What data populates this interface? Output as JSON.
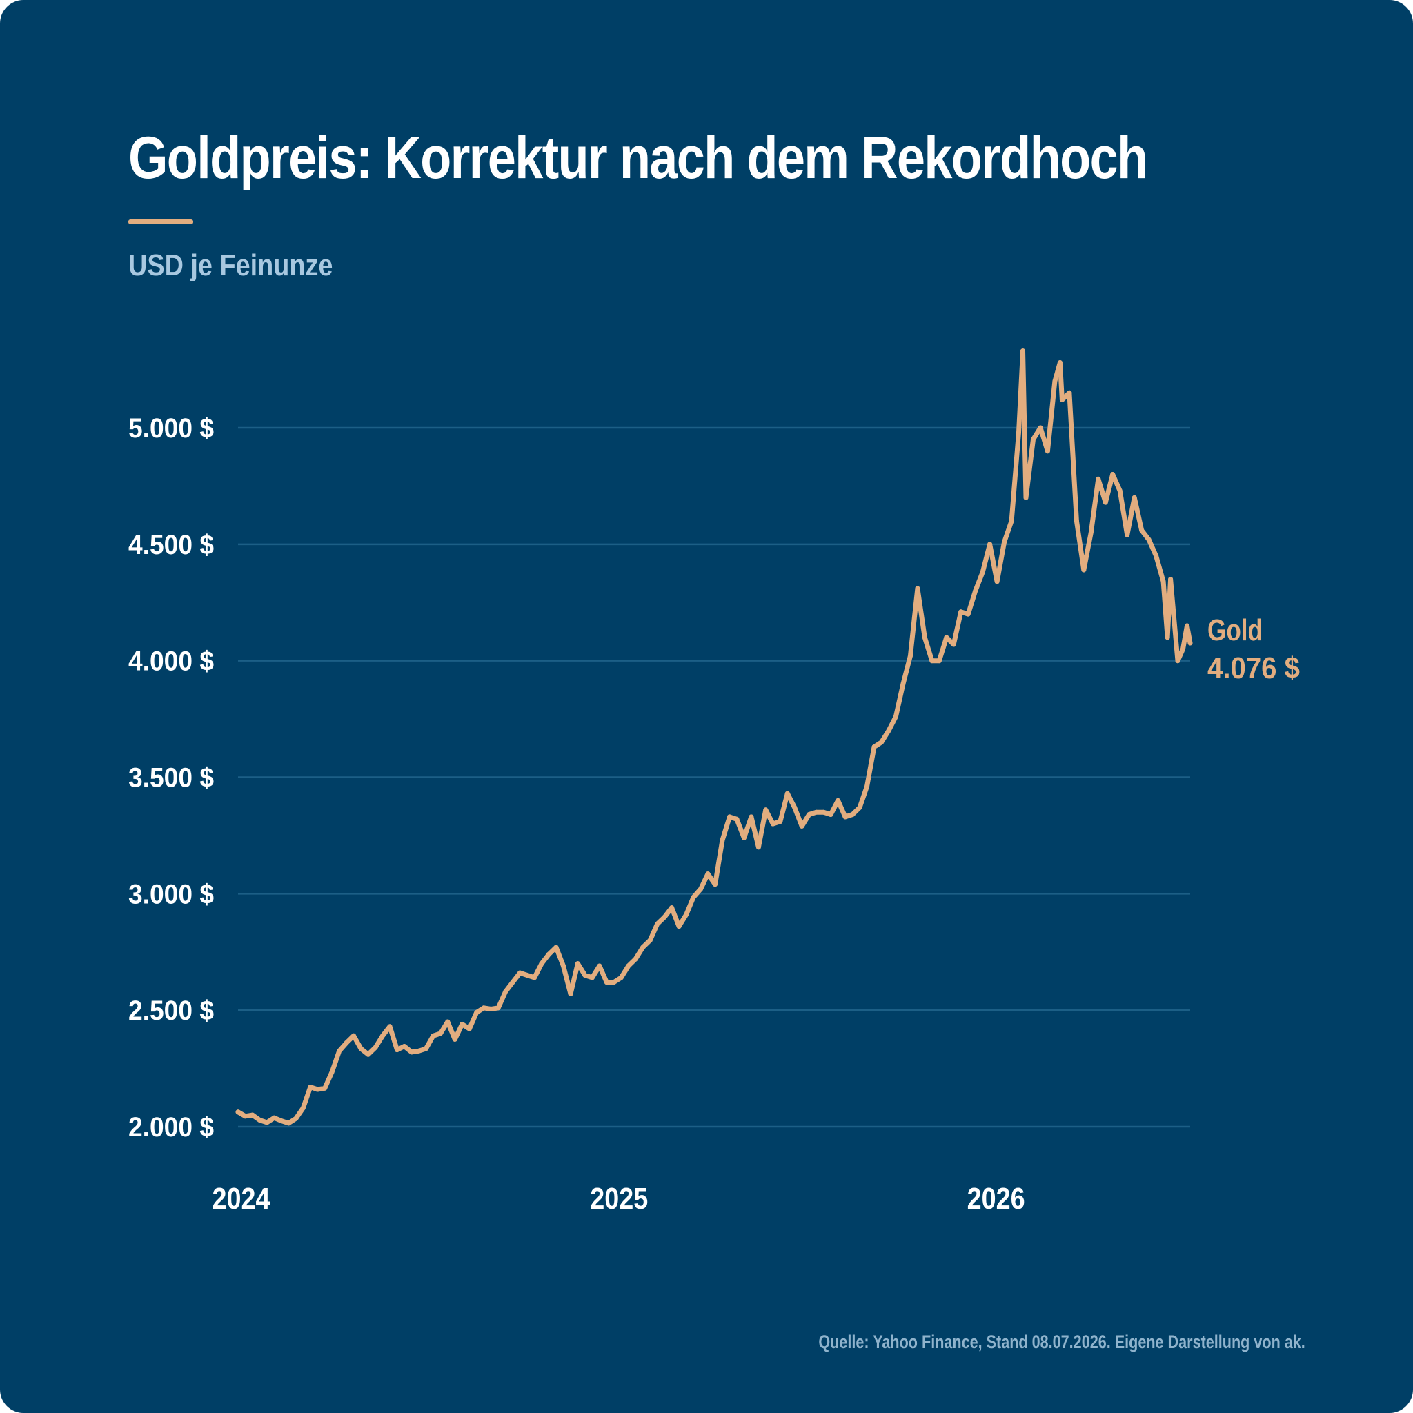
{
  "title": "Goldpreis: Korrektur nach dem Rekordhoch",
  "subtitle": "USD je Feinunze",
  "source": "Quelle: Yahoo Finance, Stand 08.07.2026. Eigene Darstellung von ak.",
  "colors": {
    "background": "#003f66",
    "line": "#e2ad7f",
    "grid": "#1c5f86",
    "text": "#ffffff",
    "muted": "#a8c8e0"
  },
  "chart_data": {
    "type": "line",
    "title": "Goldpreis: Korrektur nach dem Rekordhoch",
    "ylabel": "USD je Feinunze",
    "xlabel": "",
    "ylim": [
      2000,
      5000
    ],
    "yticks": [
      {
        "value": 2000,
        "label": "2.000 $"
      },
      {
        "value": 2500,
        "label": "2.500 $"
      },
      {
        "value": 3000,
        "label": "3.000 $"
      },
      {
        "value": 3500,
        "label": "3.500 $"
      },
      {
        "value": 4000,
        "label": "4.000 $"
      },
      {
        "value": 4500,
        "label": "4.500 $"
      },
      {
        "value": 5000,
        "label": "5.000 $"
      }
    ],
    "xticks": [
      {
        "date": "2024-01-01",
        "label": "2024"
      },
      {
        "date": "2025-01-01",
        "label": "2025"
      },
      {
        "date": "2026-01-01",
        "label": "2026"
      }
    ],
    "grid": true,
    "series": [
      {
        "name": "Gold",
        "end_label": "4.076 $",
        "points": [
          [
            "2023-12-29",
            2063
          ],
          [
            "2024-01-05",
            2045
          ],
          [
            "2024-01-12",
            2050
          ],
          [
            "2024-01-19",
            2028
          ],
          [
            "2024-01-26",
            2018
          ],
          [
            "2024-02-02",
            2038
          ],
          [
            "2024-02-09",
            2025
          ],
          [
            "2024-02-16",
            2015
          ],
          [
            "2024-02-23",
            2035
          ],
          [
            "2024-03-01",
            2080
          ],
          [
            "2024-03-08",
            2170
          ],
          [
            "2024-03-15",
            2160
          ],
          [
            "2024-03-22",
            2165
          ],
          [
            "2024-03-29",
            2235
          ],
          [
            "2024-04-05",
            2325
          ],
          [
            "2024-04-12",
            2360
          ],
          [
            "2024-04-19",
            2390
          ],
          [
            "2024-04-26",
            2335
          ],
          [
            "2024-05-03",
            2310
          ],
          [
            "2024-05-10",
            2340
          ],
          [
            "2024-05-17",
            2390
          ],
          [
            "2024-05-24",
            2430
          ],
          [
            "2024-05-31",
            2330
          ],
          [
            "2024-06-07",
            2345
          ],
          [
            "2024-06-14",
            2320
          ],
          [
            "2024-06-21",
            2325
          ],
          [
            "2024-06-28",
            2335
          ],
          [
            "2024-07-05",
            2390
          ],
          [
            "2024-07-12",
            2400
          ],
          [
            "2024-07-19",
            2450
          ],
          [
            "2024-07-26",
            2375
          ],
          [
            "2024-08-02",
            2440
          ],
          [
            "2024-08-09",
            2420
          ],
          [
            "2024-08-16",
            2490
          ],
          [
            "2024-08-23",
            2510
          ],
          [
            "2024-08-30",
            2505
          ],
          [
            "2024-09-06",
            2510
          ],
          [
            "2024-09-13",
            2580
          ],
          [
            "2024-09-20",
            2620
          ],
          [
            "2024-09-27",
            2660
          ],
          [
            "2024-10-04",
            2650
          ],
          [
            "2024-10-11",
            2640
          ],
          [
            "2024-10-18",
            2700
          ],
          [
            "2024-10-25",
            2740
          ],
          [
            "2024-11-01",
            2770
          ],
          [
            "2024-11-08",
            2690
          ],
          [
            "2024-11-15",
            2570
          ],
          [
            "2024-11-22",
            2700
          ],
          [
            "2024-11-29",
            2650
          ],
          [
            "2024-12-06",
            2640
          ],
          [
            "2024-12-13",
            2690
          ],
          [
            "2024-12-20",
            2620
          ],
          [
            "2024-12-27",
            2620
          ],
          [
            "2025-01-03",
            2640
          ],
          [
            "2025-01-10",
            2690
          ],
          [
            "2025-01-17",
            2720
          ],
          [
            "2025-01-24",
            2770
          ],
          [
            "2025-01-31",
            2800
          ],
          [
            "2025-02-07",
            2870
          ],
          [
            "2025-02-14",
            2900
          ],
          [
            "2025-02-21",
            2940
          ],
          [
            "2025-02-28",
            2860
          ],
          [
            "2025-03-07",
            2910
          ],
          [
            "2025-03-14",
            2985
          ],
          [
            "2025-03-21",
            3020
          ],
          [
            "2025-03-28",
            3085
          ],
          [
            "2025-04-04",
            3040
          ],
          [
            "2025-04-11",
            3230
          ],
          [
            "2025-04-18",
            3330
          ],
          [
            "2025-04-25",
            3320
          ],
          [
            "2025-05-02",
            3240
          ],
          [
            "2025-05-09",
            3330
          ],
          [
            "2025-05-16",
            3200
          ],
          [
            "2025-05-23",
            3360
          ],
          [
            "2025-05-30",
            3300
          ],
          [
            "2025-06-06",
            3310
          ],
          [
            "2025-06-13",
            3430
          ],
          [
            "2025-06-20",
            3370
          ],
          [
            "2025-06-27",
            3290
          ],
          [
            "2025-07-04",
            3340
          ],
          [
            "2025-07-11",
            3350
          ],
          [
            "2025-07-18",
            3350
          ],
          [
            "2025-07-25",
            3340
          ],
          [
            "2025-08-01",
            3400
          ],
          [
            "2025-08-08",
            3330
          ],
          [
            "2025-08-15",
            3340
          ],
          [
            "2025-08-22",
            3370
          ],
          [
            "2025-08-29",
            3460
          ],
          [
            "2025-09-05",
            3630
          ],
          [
            "2025-09-12",
            3650
          ],
          [
            "2025-09-19",
            3700
          ],
          [
            "2025-09-26",
            3760
          ],
          [
            "2025-10-03",
            3900
          ],
          [
            "2025-10-10",
            4020
          ],
          [
            "2025-10-17",
            4310
          ],
          [
            "2025-10-24",
            4100
          ],
          [
            "2025-10-31",
            4000
          ],
          [
            "2025-11-07",
            4000
          ],
          [
            "2025-11-14",
            4100
          ],
          [
            "2025-11-21",
            4070
          ],
          [
            "2025-11-28",
            4210
          ],
          [
            "2025-12-05",
            4200
          ],
          [
            "2025-12-12",
            4300
          ],
          [
            "2025-12-19",
            4380
          ],
          [
            "2025-12-26",
            4500
          ],
          [
            "2026-01-02",
            4340
          ],
          [
            "2026-01-09",
            4510
          ],
          [
            "2026-01-16",
            4600
          ],
          [
            "2026-01-23",
            4980
          ],
          [
            "2026-01-27",
            5330
          ],
          [
            "2026-01-30",
            4700
          ],
          [
            "2026-02-06",
            4950
          ],
          [
            "2026-02-13",
            5000
          ],
          [
            "2026-02-20",
            4900
          ],
          [
            "2026-02-27",
            5200
          ],
          [
            "2026-03-04",
            5280
          ],
          [
            "2026-03-06",
            5120
          ],
          [
            "2026-03-13",
            5150
          ],
          [
            "2026-03-20",
            4600
          ],
          [
            "2026-03-27",
            4390
          ],
          [
            "2026-04-03",
            4550
          ],
          [
            "2026-04-10",
            4780
          ],
          [
            "2026-04-17",
            4680
          ],
          [
            "2026-04-24",
            4800
          ],
          [
            "2026-05-01",
            4730
          ],
          [
            "2026-05-08",
            4540
          ],
          [
            "2026-05-15",
            4700
          ],
          [
            "2026-05-22",
            4560
          ],
          [
            "2026-05-29",
            4520
          ],
          [
            "2026-06-05",
            4450
          ],
          [
            "2026-06-12",
            4340
          ],
          [
            "2026-06-16",
            4100
          ],
          [
            "2026-06-19",
            4350
          ],
          [
            "2026-06-26",
            4000
          ],
          [
            "2026-07-01",
            4050
          ],
          [
            "2026-07-05",
            4150
          ],
          [
            "2026-07-08",
            4076
          ]
        ]
      }
    ]
  }
}
